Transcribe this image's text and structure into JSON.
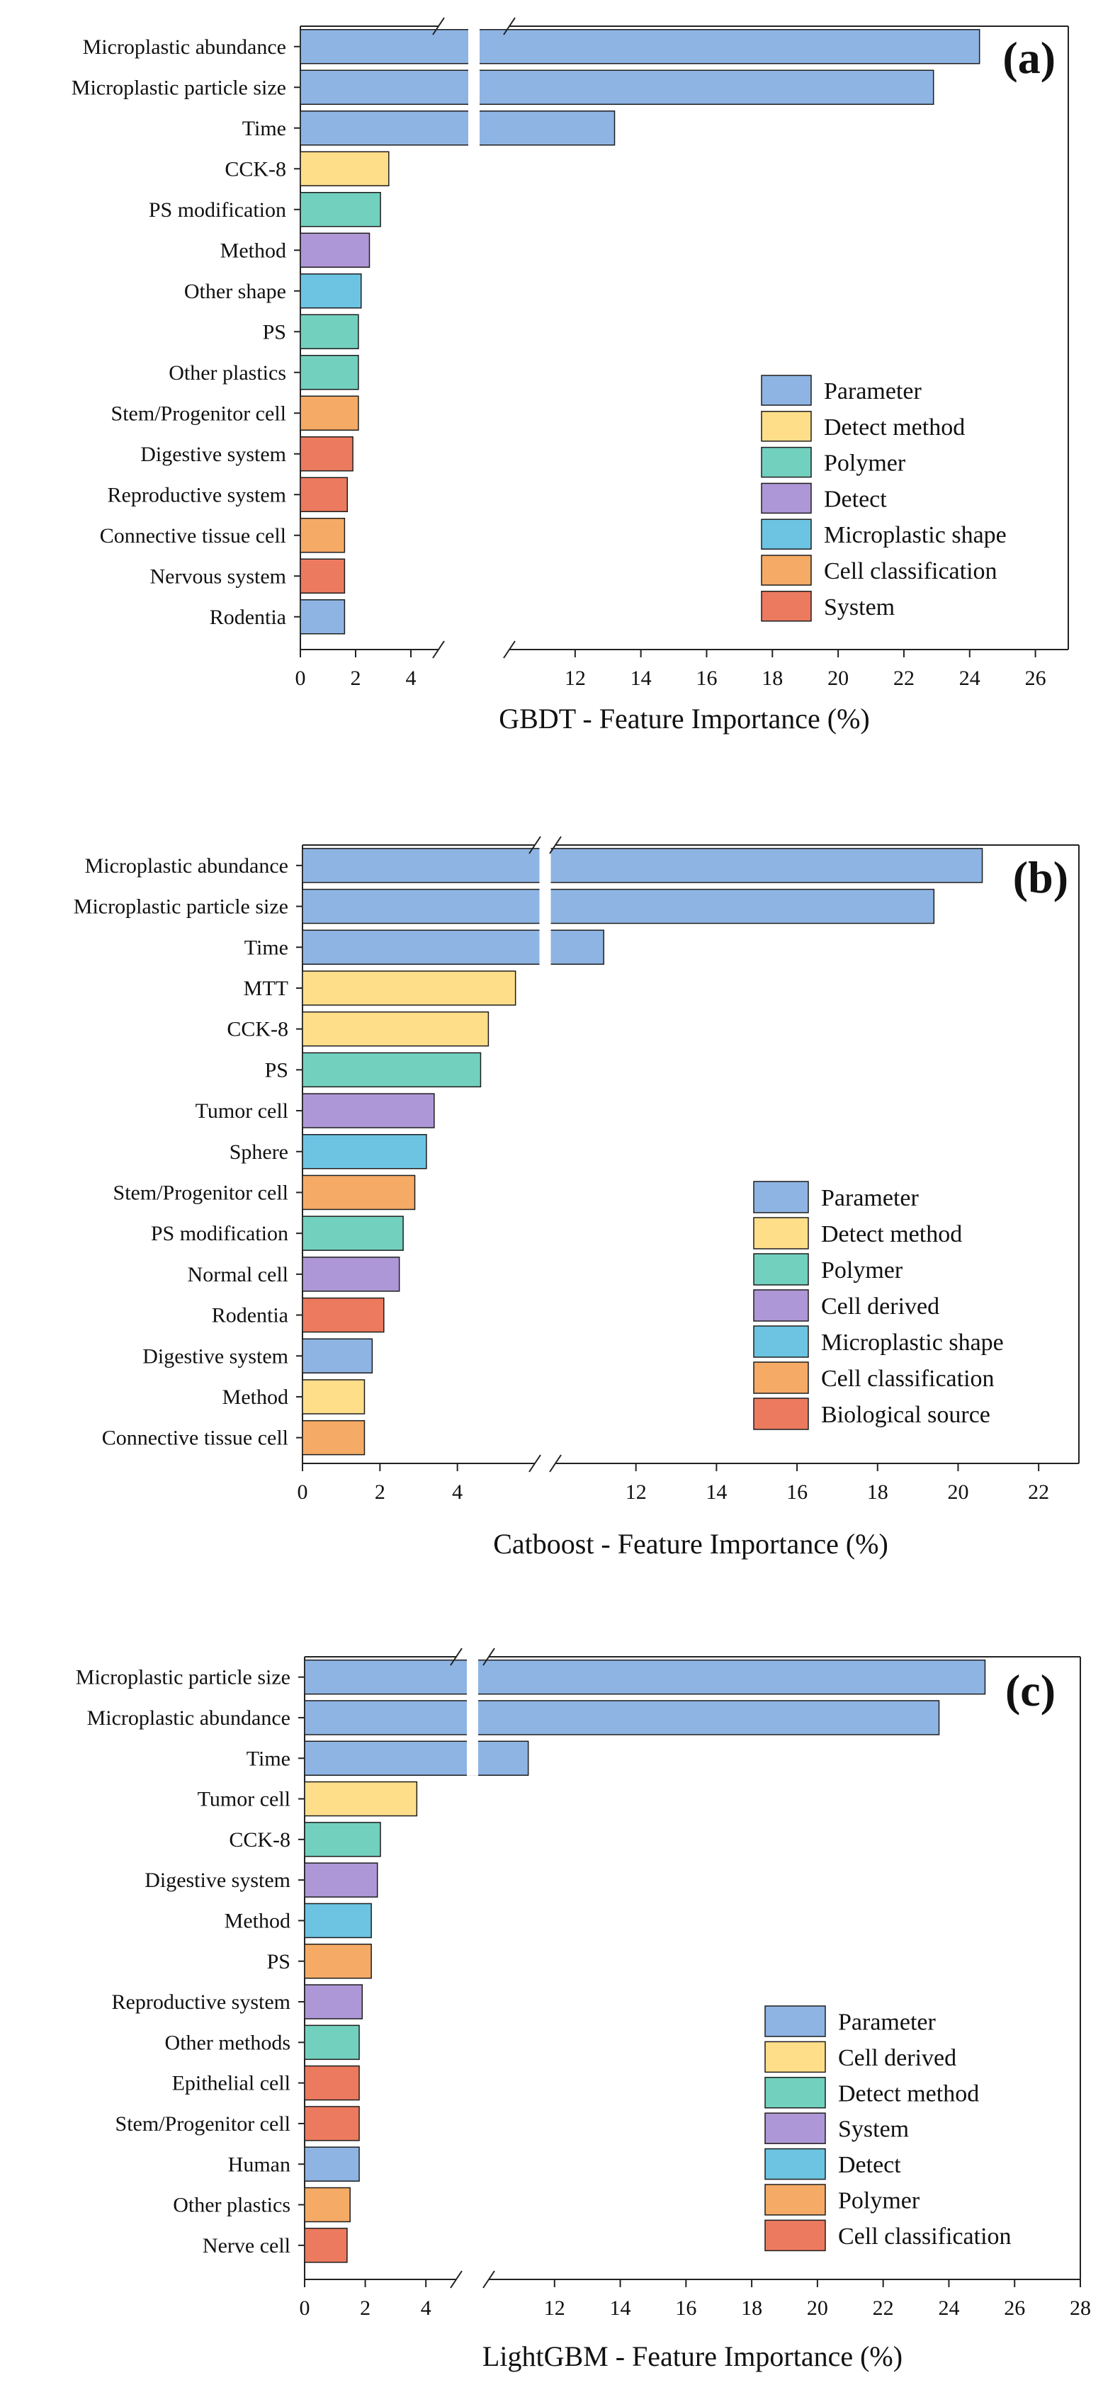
{
  "chart_data": [
    {
      "type": "bar",
      "orientation": "horizontal",
      "panel_label": "(a)",
      "xlabel": "GBDT - Feature Importance (%)",
      "ylabel": "",
      "xlim": [
        0,
        27
      ],
      "axis_break": [
        5,
        10
      ],
      "x_ticks": [
        0,
        2,
        4,
        12,
        14,
        16,
        18,
        20,
        22,
        24,
        26
      ],
      "categories": [
        "Microplastic abundance",
        "Microplastic particle size",
        "Time",
        "CCK-8",
        "PS modification",
        "Method",
        "Other shape",
        "PS",
        "Other plastics",
        "Stem/Progenitor cell",
        "Digestive system",
        "Reproductive system",
        "Connective tissue cell",
        "Nervous system",
        "Rodentia"
      ],
      "values": [
        24.3,
        22.9,
        13.2,
        3.2,
        2.9,
        2.5,
        2.2,
        2.1,
        2.1,
        2.1,
        1.9,
        1.7,
        1.6,
        1.6,
        1.6
      ],
      "groups": [
        "Parameter",
        "Parameter",
        "Parameter",
        "Detect method",
        "Polymer",
        "Detect",
        "Microplastic shape",
        "Polymer",
        "Polymer",
        "Cell classification",
        "System",
        "System",
        "Cell classification",
        "System",
        "Parameter"
      ],
      "legend": [
        {
          "name": "Parameter",
          "color": "#8EB4E3"
        },
        {
          "name": "Detect method",
          "color": "#FFDE8A"
        },
        {
          "name": "Polymer",
          "color": "#72D0BE"
        },
        {
          "name": "Detect",
          "color": "#AE97D6"
        },
        {
          "name": "Microplastic shape",
          "color": "#6CC4E2"
        },
        {
          "name": "Cell classification",
          "color": "#F5AA65"
        },
        {
          "name": "System",
          "color": "#EC7A5F"
        }
      ],
      "legend_position": "bottom-right"
    },
    {
      "type": "bar",
      "orientation": "horizontal",
      "panel_label": "(b)",
      "xlabel": "Catboost - Feature Importance (%)",
      "ylabel": "",
      "xlim": [
        0,
        23
      ],
      "axis_break": [
        6,
        10
      ],
      "x_ticks": [
        0,
        2,
        4,
        12,
        14,
        16,
        18,
        20,
        22
      ],
      "categories": [
        "Microplastic abundance",
        "Microplastic particle size",
        "Time",
        "MTT",
        "CCK-8",
        "PS",
        "Tumor cell",
        "Sphere",
        "Stem/Progenitor cell",
        "PS modification",
        "Normal cell",
        "Rodentia",
        "Digestive system",
        "Method",
        "Connective tissue cell"
      ],
      "values": [
        20.6,
        19.4,
        11.2,
        5.5,
        4.8,
        4.6,
        3.4,
        3.2,
        2.9,
        2.6,
        2.5,
        2.1,
        1.8,
        1.6,
        1.6
      ],
      "groups": [
        "Parameter",
        "Parameter",
        "Parameter",
        "Detect method",
        "Detect method",
        "Polymer",
        "Cell derived",
        "Microplastic shape",
        "Cell classification",
        "Polymer",
        "Cell derived",
        "Biological source",
        "Parameter",
        "Detect method",
        "Cell classification"
      ],
      "legend": [
        {
          "name": "Parameter",
          "color": "#8EB4E3"
        },
        {
          "name": "Detect method",
          "color": "#FFDE8A"
        },
        {
          "name": "Polymer",
          "color": "#72D0BE"
        },
        {
          "name": "Cell derived",
          "color": "#AE97D6"
        },
        {
          "name": "Microplastic shape",
          "color": "#6CC4E2"
        },
        {
          "name": "Cell classification",
          "color": "#F5AA65"
        },
        {
          "name": "Biological source",
          "color": "#EC7A5F"
        }
      ],
      "legend_position": "bottom-right"
    },
    {
      "type": "bar",
      "orientation": "horizontal",
      "panel_label": "(c)",
      "xlabel": "LightGBM - Feature Importance (%)",
      "ylabel": "",
      "xlim": [
        0,
        28
      ],
      "axis_break": [
        5,
        10
      ],
      "x_ticks": [
        0,
        2,
        4,
        12,
        14,
        16,
        18,
        20,
        22,
        24,
        26,
        28
      ],
      "categories": [
        "Microplastic particle size",
        "Microplastic abundance",
        "Time",
        "Tumor cell",
        "CCK-8",
        "Digestive system",
        "Method",
        "PS",
        "Reproductive system",
        "Other methods",
        "Epithelial cell",
        "Stem/Progenitor cell",
        "Human",
        "Other plastics",
        "Nerve cell"
      ],
      "values": [
        25.1,
        23.7,
        11.2,
        3.7,
        2.5,
        2.4,
        2.2,
        2.2,
        1.9,
        1.8,
        1.8,
        1.8,
        1.8,
        1.5,
        1.4
      ],
      "groups": [
        "Parameter",
        "Parameter",
        "Parameter",
        "Cell derived",
        "Detect method",
        "System",
        "Detect",
        "Polymer",
        "System",
        "Detect method",
        "Cell classification",
        "Cell classification",
        "Parameter",
        "Polymer",
        "Cell classification"
      ],
      "legend": [
        {
          "name": "Parameter",
          "color": "#8EB4E3"
        },
        {
          "name": "Cell derived",
          "color": "#FFDE8A"
        },
        {
          "name": "Detect method",
          "color": "#72D0BE"
        },
        {
          "name": "System",
          "color": "#AE97D6"
        },
        {
          "name": "Detect",
          "color": "#6CC4E2"
        },
        {
          "name": "Polymer",
          "color": "#F5AA65"
        },
        {
          "name": "Cell classification",
          "color": "#EC7A5F"
        }
      ],
      "legend_position": "bottom-right"
    }
  ]
}
